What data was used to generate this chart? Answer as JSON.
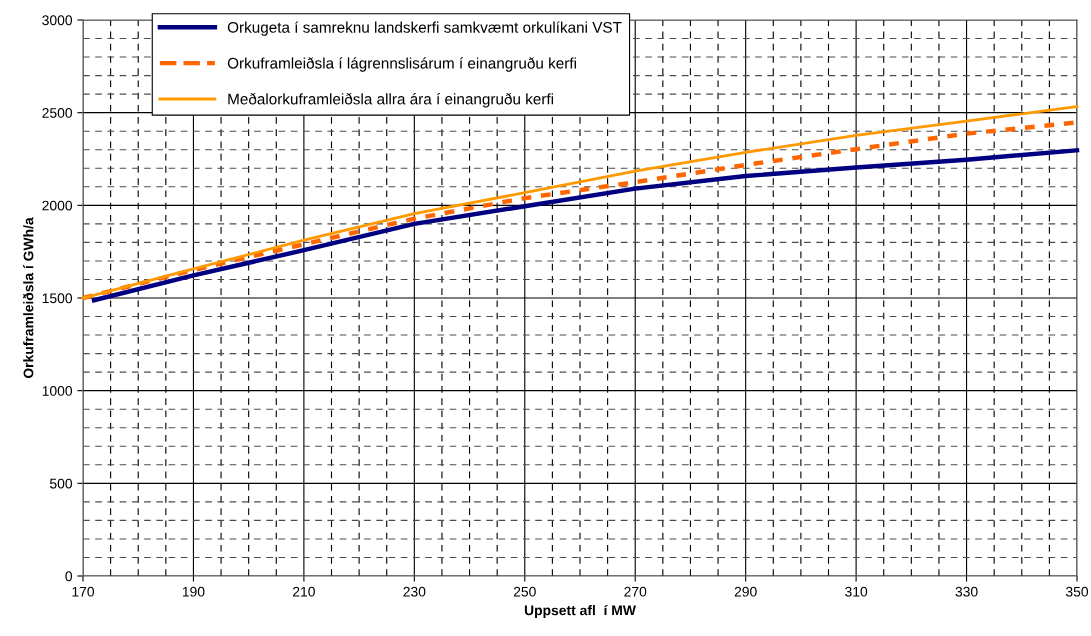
{
  "chart_data": {
    "type": "line",
    "xlabel": "Uppsett afl  í MW",
    "ylabel": "Orkuframleiðsla í GWh/a",
    "xlim": [
      170,
      350
    ],
    "xticks": [
      170,
      190,
      210,
      230,
      250,
      270,
      290,
      310,
      330,
      350
    ],
    "ylim": [
      0,
      3000
    ],
    "yticks": [
      0,
      500,
      1000,
      1500,
      2000,
      2500,
      3000
    ],
    "grid": true,
    "legend": "top left",
    "series": [
      {
        "name": "Orkugeta í samreknu landskerfi samkvæmt orkulíkani VST",
        "color": "#000080",
        "line_style": "solid",
        "x": [
          172,
          190,
          210,
          230,
          250,
          270,
          290,
          310,
          330,
          350
        ],
        "values": [
          1488,
          1622,
          1758,
          1900,
          1995,
          2090,
          2158,
          2204,
          2246,
          2297
        ]
      },
      {
        "name": "Orkuframleiðsla í lágrennslisárum í einangruðu kerfi",
        "color": "#ff6600",
        "line_style": "dashed",
        "x": [
          170,
          190,
          210,
          230,
          250,
          270,
          290,
          310,
          330,
          350
        ],
        "values": [
          1500,
          1651,
          1790,
          1928,
          2039,
          2125,
          2218,
          2303,
          2387,
          2447
        ]
      },
      {
        "name": "Meðalorkuframleiðsla allra ára í einangruðu kerfi",
        "color": "#ff9900",
        "line_style": "solid",
        "x": [
          170,
          190,
          210,
          230,
          250,
          270,
          290,
          310,
          330,
          350
        ],
        "values": [
          1500,
          1657,
          1812,
          1955,
          2068,
          2185,
          2286,
          2377,
          2455,
          2533
        ]
      }
    ]
  }
}
